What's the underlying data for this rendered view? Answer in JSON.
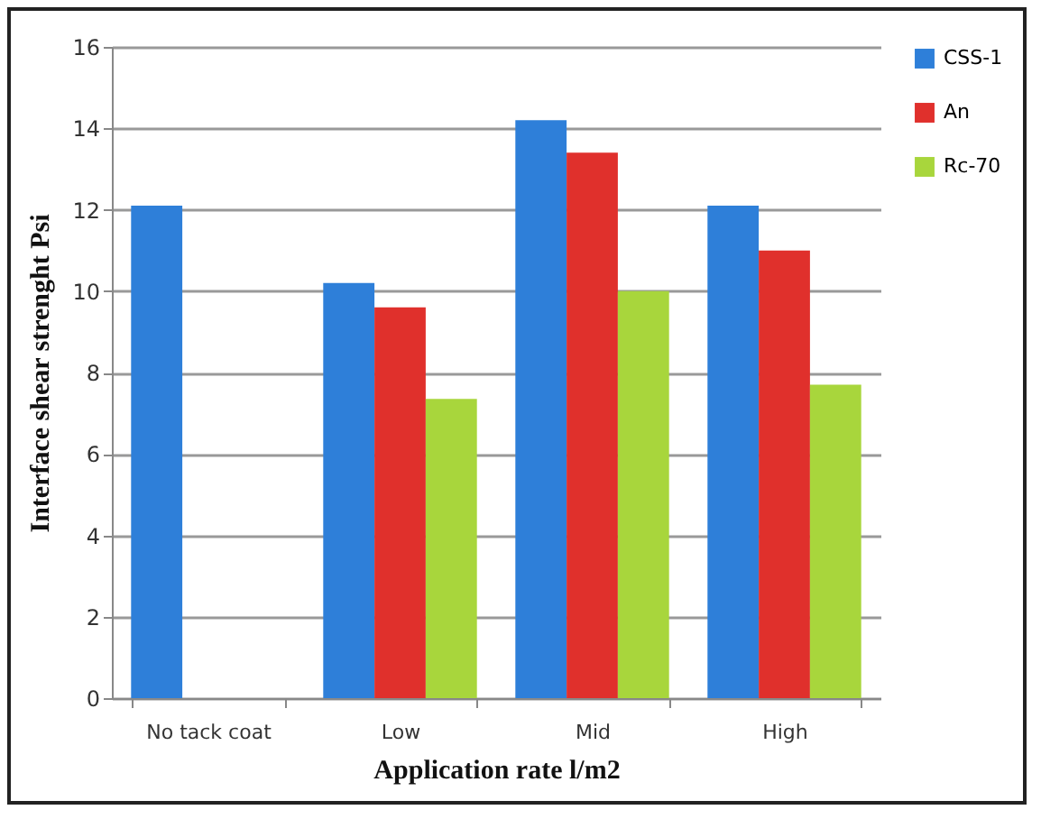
{
  "chart_data": {
    "type": "bar",
    "xlabel": "Application  rate l/m2",
    "ylabel": "Interface shear strenght  Psi",
    "categories": [
      "No tack coat",
      "Low",
      "Mid",
      "High"
    ],
    "series": [
      {
        "name": "CSS-1",
        "color": "#2e7fd9",
        "values": [
          12.1,
          10.2,
          14.2,
          12.1
        ]
      },
      {
        "name": "An",
        "color": "#e0302c",
        "values": [
          null,
          9.6,
          13.4,
          11.0
        ]
      },
      {
        "name": "Rc-70",
        "color": "#a8d63c",
        "values": [
          null,
          7.35,
          10.0,
          7.7
        ]
      }
    ],
    "ylim": [
      0,
      16
    ],
    "yticks": [
      0,
      2,
      4,
      6,
      8,
      10,
      12,
      14,
      16
    ],
    "grid": "y",
    "legend": "right"
  }
}
